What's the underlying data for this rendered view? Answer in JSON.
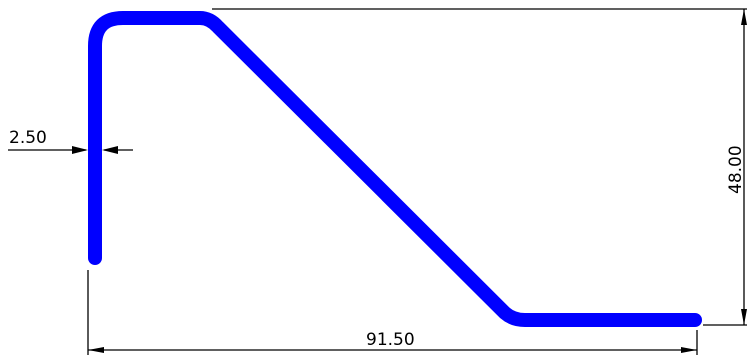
{
  "drawing": {
    "profile_color": "#0000ff",
    "dimension_color": "#000000",
    "background": "#ffffff"
  },
  "dimensions": {
    "thickness": "2.50",
    "height": "48.00",
    "width": "91.50"
  }
}
